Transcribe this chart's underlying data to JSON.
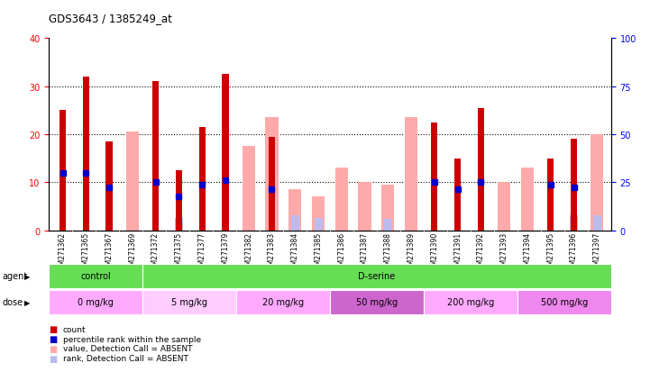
{
  "title": "GDS3643 / 1385249_at",
  "samples": [
    "GSM271362",
    "GSM271365",
    "GSM271367",
    "GSM271369",
    "GSM271372",
    "GSM271375",
    "GSM271377",
    "GSM271379",
    "GSM271382",
    "GSM271383",
    "GSM271384",
    "GSM271385",
    "GSM271386",
    "GSM271387",
    "GSM271388",
    "GSM271389",
    "GSM271390",
    "GSM271391",
    "GSM271392",
    "GSM271393",
    "GSM271394",
    "GSM271395",
    "GSM271396",
    "GSM271397"
  ],
  "count_values": [
    25,
    32,
    18.5,
    null,
    31,
    12.5,
    21.5,
    32.5,
    null,
    19.5,
    null,
    null,
    null,
    null,
    null,
    null,
    22.5,
    15,
    25.5,
    null,
    null,
    15,
    19,
    null
  ],
  "percentile_values": [
    12,
    12,
    9,
    null,
    10,
    7,
    9.5,
    10.5,
    null,
    8.5,
    null,
    null,
    null,
    null,
    null,
    null,
    10,
    8.5,
    10,
    null,
    null,
    9.5,
    9,
    null
  ],
  "absent_value_values": [
    null,
    null,
    null,
    20.5,
    null,
    null,
    null,
    null,
    17.5,
    23.5,
    8.5,
    7,
    13,
    10,
    9.5,
    23.5,
    null,
    null,
    null,
    10,
    13,
    null,
    null,
    20
  ],
  "absent_rank_values": [
    null,
    null,
    null,
    null,
    null,
    6.5,
    null,
    null,
    null,
    null,
    8,
    6.5,
    null,
    null,
    6,
    null,
    null,
    null,
    null,
    null,
    null,
    null,
    8,
    8
  ],
  "ylim_left": [
    0,
    40
  ],
  "ylim_right": [
    0,
    100
  ],
  "yticks_left": [
    0,
    10,
    20,
    30,
    40
  ],
  "yticks_right": [
    0,
    25,
    50,
    75,
    100
  ],
  "count_color": "#cc0000",
  "percentile_color": "#0000cc",
  "absent_value_color": "#ffaaaa",
  "absent_rank_color": "#bbbbee",
  "agent_control_color": "#66dd55",
  "agent_dserine_color": "#66dd55",
  "dose_colors": [
    "#ffaaff",
    "#ffccff",
    "#ffaaff",
    "#cc66cc",
    "#ffaaff",
    "#ee88ee"
  ],
  "dose_labels": [
    "0 mg/kg",
    "5 mg/kg",
    "20 mg/kg",
    "50 mg/kg",
    "200 mg/kg",
    "500 mg/kg"
  ],
  "dose_boundaries": [
    0,
    4,
    8,
    12,
    16,
    20,
    24
  ],
  "bg_color": "#ffffff",
  "plot_bg": "#ffffff",
  "tick_area_bg": "#d4d4d4"
}
